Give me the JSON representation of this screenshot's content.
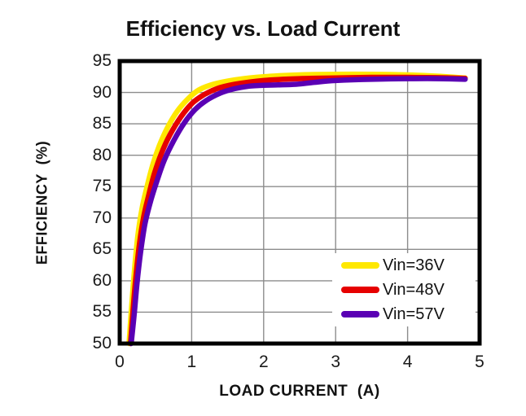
{
  "title": "Efficiency vs. Load Current",
  "colors": {
    "gridline": "#8c8c8c",
    "axis_border": "#000000",
    "text": "#1a1a1a",
    "series_yellow": "#ffe800",
    "series_red": "#e60000",
    "series_purple": "#5a00b4"
  },
  "legend": {
    "entries": [
      {
        "label": "Vin=36V",
        "color": "#ffe800"
      },
      {
        "label": "Vin=48V",
        "color": "#e60000"
      },
      {
        "label": "Vin=57V",
        "color": "#5a00b4"
      }
    ]
  },
  "chart_data": {
    "type": "line",
    "title": "Efficiency vs. Load Current",
    "xlabel": "LOAD CURRENT  (A)",
    "ylabel": "EFFICIENCY  (%)",
    "xlim": [
      0,
      5
    ],
    "ylim": [
      50,
      95
    ],
    "x_ticks": [
      0,
      1,
      2,
      3,
      4,
      5
    ],
    "y_ticks": [
      50,
      55,
      60,
      65,
      70,
      75,
      80,
      85,
      90,
      95
    ],
    "grid": true,
    "legend_position": "inside-lower-right",
    "series": [
      {
        "name": "Vin=36V",
        "color": "#ffe800",
        "points": [
          [
            0.13,
            50
          ],
          [
            0.16,
            55
          ],
          [
            0.2,
            61
          ],
          [
            0.25,
            67
          ],
          [
            0.31,
            71.5
          ],
          [
            0.38,
            75
          ],
          [
            0.46,
            78.5
          ],
          [
            0.55,
            81.5
          ],
          [
            0.66,
            84.3
          ],
          [
            0.8,
            87.0
          ],
          [
            0.95,
            89.0
          ],
          [
            1.1,
            90.4
          ],
          [
            1.3,
            91.3
          ],
          [
            1.6,
            92.0
          ],
          [
            2.0,
            92.5
          ],
          [
            2.5,
            92.8
          ],
          [
            3.0,
            92.9
          ],
          [
            3.5,
            92.9
          ],
          [
            4.0,
            92.8
          ],
          [
            4.4,
            92.6
          ],
          [
            4.8,
            92.3
          ]
        ]
      },
      {
        "name": "Vin=48V",
        "color": "#e60000",
        "points": [
          [
            0.15,
            50
          ],
          [
            0.18,
            54.5
          ],
          [
            0.22,
            60
          ],
          [
            0.27,
            65.5
          ],
          [
            0.33,
            70
          ],
          [
            0.4,
            73.5
          ],
          [
            0.48,
            77
          ],
          [
            0.58,
            80.3
          ],
          [
            0.7,
            83.3
          ],
          [
            0.85,
            86.1
          ],
          [
            1.0,
            88.2
          ],
          [
            1.15,
            89.5
          ],
          [
            1.35,
            90.6
          ],
          [
            1.6,
            91.3
          ],
          [
            2.0,
            91.9
          ],
          [
            2.5,
            92.2
          ],
          [
            3.0,
            92.3
          ],
          [
            3.5,
            92.4
          ],
          [
            4.0,
            92.4
          ],
          [
            4.4,
            92.35
          ],
          [
            4.8,
            92.25
          ]
        ]
      },
      {
        "name": "Vin=57V",
        "color": "#5a00b4",
        "points": [
          [
            0.16,
            50
          ],
          [
            0.2,
            54.5
          ],
          [
            0.24,
            59.5
          ],
          [
            0.29,
            64.5
          ],
          [
            0.35,
            69
          ],
          [
            0.43,
            72.7
          ],
          [
            0.52,
            76
          ],
          [
            0.62,
            79.2
          ],
          [
            0.75,
            82.3
          ],
          [
            0.9,
            85.2
          ],
          [
            1.05,
            87.3
          ],
          [
            1.2,
            88.7
          ],
          [
            1.4,
            89.9
          ],
          [
            1.6,
            90.6
          ],
          [
            1.8,
            91.0
          ],
          [
            2.0,
            91.15
          ],
          [
            2.2,
            91.2
          ],
          [
            2.45,
            91.3
          ],
          [
            2.7,
            91.6
          ],
          [
            3.0,
            91.9
          ],
          [
            3.5,
            92.1
          ],
          [
            4.0,
            92.2
          ],
          [
            4.4,
            92.2
          ],
          [
            4.8,
            92.1
          ]
        ]
      }
    ]
  }
}
